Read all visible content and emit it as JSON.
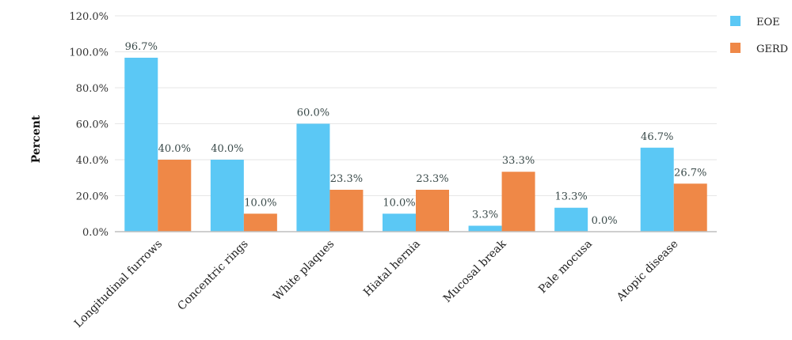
{
  "chart_data": {
    "type": "bar",
    "ylabel": "Percent",
    "xlabel": "",
    "ylim": [
      0,
      120
    ],
    "yticks": [
      0,
      20,
      40,
      60,
      80,
      100,
      120
    ],
    "ytick_labels": [
      "0.0%",
      "20.0%",
      "40.0%",
      "60.0%",
      "80.0%",
      "100.0%",
      "120.0%"
    ],
    "grid": true,
    "legend_position": "top-right",
    "categories": [
      "Longitudinal furrows",
      "Concentric rings",
      "White plaques",
      "Hiatal hernia",
      "Mucosal break",
      "Pale mocusa",
      "Atopic disease"
    ],
    "series": [
      {
        "name": "EOE",
        "color": "#5bc8f5",
        "values": [
          96.7,
          40.0,
          60.0,
          10.0,
          3.3,
          13.3,
          46.7
        ],
        "labels": [
          "96.7%",
          "40.0%",
          "60.0%",
          "10.0%",
          "3.3%",
          "13.3%",
          "46.7%"
        ]
      },
      {
        "name": "GERD",
        "color": "#ef8847",
        "values": [
          40.0,
          10.0,
          23.3,
          23.3,
          33.3,
          0.0,
          26.7
        ],
        "labels": [
          "40.0%",
          "10.0%",
          "23.3%",
          "23.3%",
          "33.3%",
          "0.0%",
          "26.7%"
        ]
      }
    ]
  }
}
